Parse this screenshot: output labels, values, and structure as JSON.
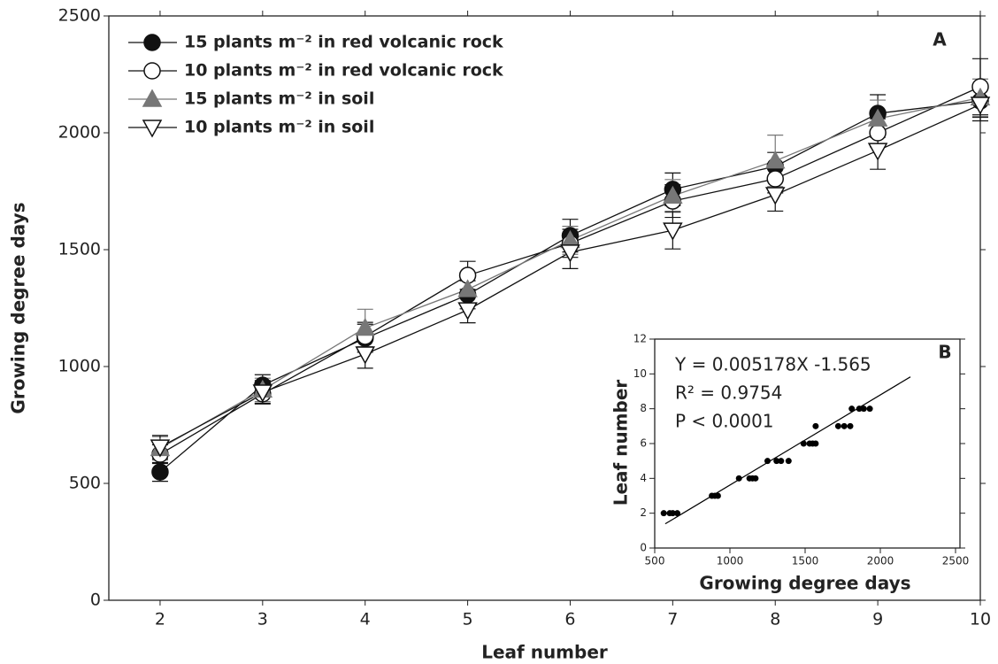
{
  "chart_data": [
    {
      "type": "line",
      "x_label": "Leaf number",
      "y_label": "Growing degree days",
      "annotation": "A",
      "x": [
        2,
        3,
        4,
        5,
        6,
        7,
        8,
        9,
        10
      ],
      "xlim": [
        1.5,
        10
      ],
      "xticks": [
        2,
        3,
        4,
        5,
        6,
        7,
        8,
        9,
        10
      ],
      "ylim": [
        0,
        2500
      ],
      "yticks": [
        0,
        500,
        1000,
        1500,
        2000,
        2500
      ],
      "series": [
        {
          "name": "15 plants m⁻² in red volcanic rock",
          "color": "#111111",
          "marker": "circle",
          "fill": "#111111",
          "values": [
            549,
            920,
            1121,
            1307,
            1560,
            1758,
            1856,
            2083,
            2136
          ],
          "errors": [
            40,
            45,
            60,
            60,
            70,
            70,
            60,
            80,
            70
          ]
        },
        {
          "name": "10 plants m⁻² in red volcanic rock",
          "color": "#111111",
          "marker": "circle",
          "fill": "#ffffff",
          "values": [
            625,
            883,
            1129,
            1390,
            1527,
            1708,
            1803,
            2000,
            2197
          ],
          "errors": [
            40,
            40,
            60,
            60,
            60,
            70,
            60,
            60,
            120
          ]
        },
        {
          "name": "15 plants m⁻² in soil",
          "color": "#777777",
          "marker": "triangle-up",
          "fill": "#777777",
          "values": [
            650,
            900,
            1165,
            1330,
            1540,
            1730,
            1880,
            2060,
            2150
          ],
          "errors": [
            50,
            50,
            80,
            60,
            60,
            70,
            110,
            80,
            80
          ]
        },
        {
          "name": "10 plants m⁻² in soil",
          "color": "#111111",
          "marker": "triangle-down",
          "fill": "#ffffff",
          "values": [
            655,
            890,
            1053,
            1242,
            1489,
            1583,
            1735,
            1924,
            2121
          ],
          "errors": [
            50,
            50,
            60,
            55,
            70,
            80,
            70,
            80,
            70
          ]
        }
      ]
    },
    {
      "type": "scatter",
      "x_label": "Growing degree days",
      "y_label": "Leaf number",
      "annotation": "B",
      "equation": "Y = 0.005178X -1.565",
      "r_squared": "R² = 0.9754",
      "p_value": "P < 0.0001",
      "xlim": [
        500,
        2500
      ],
      "xticks": [
        500,
        1000,
        1500,
        2000,
        2500
      ],
      "ylim": [
        0,
        12
      ],
      "yticks": [
        0,
        2,
        4,
        6,
        8,
        10,
        12
      ],
      "color": "#000000",
      "x": [
        560,
        600,
        620,
        650,
        880,
        900,
        920,
        1060,
        1130,
        1150,
        1170,
        1250,
        1310,
        1340,
        1390,
        1490,
        1530,
        1550,
        1570,
        1570,
        1720,
        1760,
        1800,
        1810,
        1860,
        1890,
        1930
      ],
      "values": [
        2,
        2,
        2,
        2,
        3,
        3,
        3,
        4,
        4,
        4,
        4,
        5,
        5,
        5,
        5,
        6,
        6,
        6,
        6,
        7,
        7,
        7,
        7,
        8,
        8,
        8,
        8
      ],
      "fit": {
        "x": [
          570,
          2200
        ],
        "y": [
          1.39,
          9.83
        ]
      }
    }
  ]
}
